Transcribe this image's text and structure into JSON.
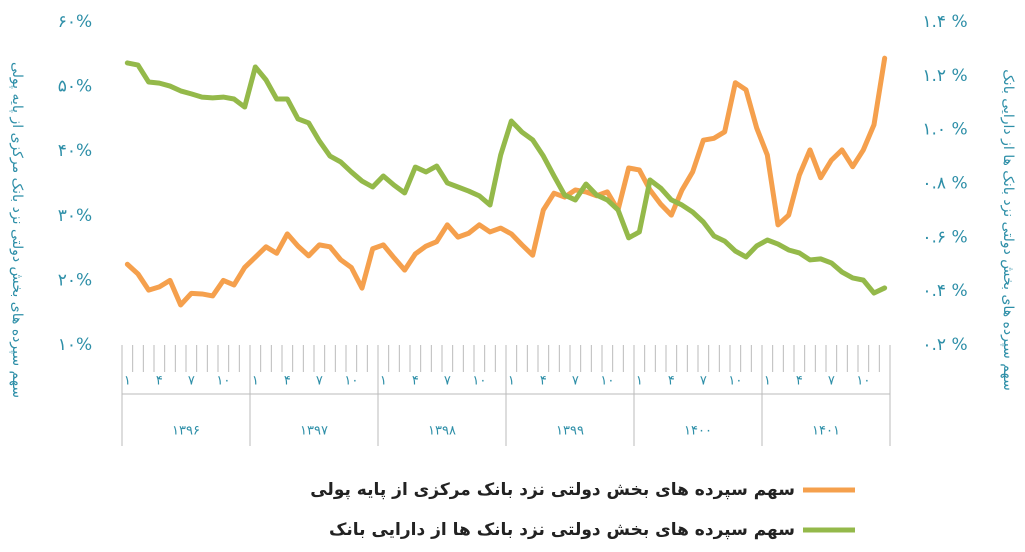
{
  "chart_data": {
    "type": "line",
    "y_label": "سهم سپرده های بخش دولتی نزد بانک مرکزی از پایه پولی",
    "y2_label": "سهم سپرده های بخش دولتی نزد بانک ها از دارایی بانک",
    "categories": [
      "۱",
      null,
      null,
      "۴",
      null,
      null,
      "۷",
      null,
      null,
      "۱۰",
      null,
      null,
      "۱",
      null,
      null,
      "۴",
      null,
      null,
      "۷",
      null,
      null,
      "۱۰",
      null,
      null,
      "۱",
      null,
      null,
      "۴",
      null,
      null,
      "۷",
      null,
      null,
      "۱۰",
      null,
      null,
      "۱",
      null,
      null,
      "۴",
      null,
      null,
      "۷",
      null,
      null,
      "۱۰",
      null,
      null,
      "۱",
      null,
      null,
      "۴",
      null,
      null,
      "۷",
      null,
      null,
      "۱۰",
      null,
      null,
      "۱",
      null,
      null,
      "۴",
      null,
      null,
      "۷",
      null,
      null,
      "۱۰",
      null,
      null
    ],
    "years": [
      "۱۳۹۶",
      "۱۳۹۷",
      "۱۳۹۸",
      "۱۳۹۹",
      "۱۴۰۰",
      "۱۴۰۱"
    ],
    "ylim": [
      10,
      60
    ],
    "yticks": [
      {
        "value": 10,
        "label": "۱۰%"
      },
      {
        "value": 20,
        "label": "۲۰%"
      },
      {
        "value": 30,
        "label": "۳۰%"
      },
      {
        "value": 40,
        "label": "۴۰%"
      },
      {
        "value": 50,
        "label": "۵۰%"
      },
      {
        "value": 60,
        "label": "۶۰%"
      }
    ],
    "y2lim": [
      0.2,
      1.4
    ],
    "y2ticks": [
      {
        "value": 0.2,
        "label": "۰.۲ %"
      },
      {
        "value": 0.4,
        "label": "۰.۴ %"
      },
      {
        "value": 0.6,
        "label": "۰.۶ %"
      },
      {
        "value": 0.8,
        "label": "۰.۸ %"
      },
      {
        "value": 1.0,
        "label": "۱.۰ %"
      },
      {
        "value": 1.2,
        "label": "۱.۲ %"
      },
      {
        "value": 1.4,
        "label": "۱.۴ %"
      }
    ],
    "series": [
      {
        "name": "سهم سپرده های بخش دولتی نزد بانک مرکزی از پایه پولی",
        "color": "#f5a04d",
        "axis": "y",
        "values": [
          22.5,
          21,
          18.5,
          19,
          20,
          16.2,
          18,
          17.9,
          17.6,
          20,
          19.3,
          22,
          23.6,
          25.2,
          24.2,
          27.2,
          25.3,
          23.8,
          25.5,
          25.2,
          23.2,
          22,
          18.8,
          24.9,
          25.5,
          23.5,
          21.6,
          24.1,
          25.3,
          26,
          28.6,
          26.7,
          27.3,
          28.6,
          27.5,
          28.1,
          27.2,
          25.5,
          23.9,
          30.9,
          33.5,
          32.9,
          34,
          33.7,
          33.1,
          33.7,
          30.9,
          37.4,
          37.1,
          34,
          31.8,
          30.1,
          34,
          36.8,
          41.7,
          42,
          43,
          50.6,
          49.5,
          43.6,
          39.4,
          28.6,
          30.1,
          36.3,
          40.2,
          35.9,
          38.6,
          40.2,
          37.6,
          40.2,
          44.1,
          54.4
        ]
      },
      {
        "name": "سهم سپرده های بخش دولتی نزد بانک ها از دارایی بانک",
        "color": "#94b94a",
        "axis": "y2",
        "values": [
          1.248,
          1.24,
          1.177,
          1.173,
          1.162,
          1.144,
          1.133,
          1.121,
          1.118,
          1.121,
          1.114,
          1.084,
          1.233,
          1.185,
          1.114,
          1.114,
          1.04,
          1.025,
          0.958,
          0.902,
          0.88,
          0.843,
          0.809,
          0.787,
          0.828,
          0.794,
          0.765,
          0.861,
          0.843,
          0.865,
          0.802,
          0.787,
          0.772,
          0.754,
          0.72,
          0.906,
          1.032,
          0.991,
          0.962,
          0.902,
          0.828,
          0.757,
          0.739,
          0.798,
          0.757,
          0.739,
          0.702,
          0.598,
          0.62,
          0.813,
          0.783,
          0.739,
          0.72,
          0.694,
          0.657,
          0.605,
          0.586,
          0.549,
          0.527,
          0.568,
          0.59,
          0.575,
          0.553,
          0.542,
          0.516,
          0.52,
          0.505,
          0.471,
          0.449,
          0.441,
          0.393,
          0.412
        ]
      }
    ]
  }
}
